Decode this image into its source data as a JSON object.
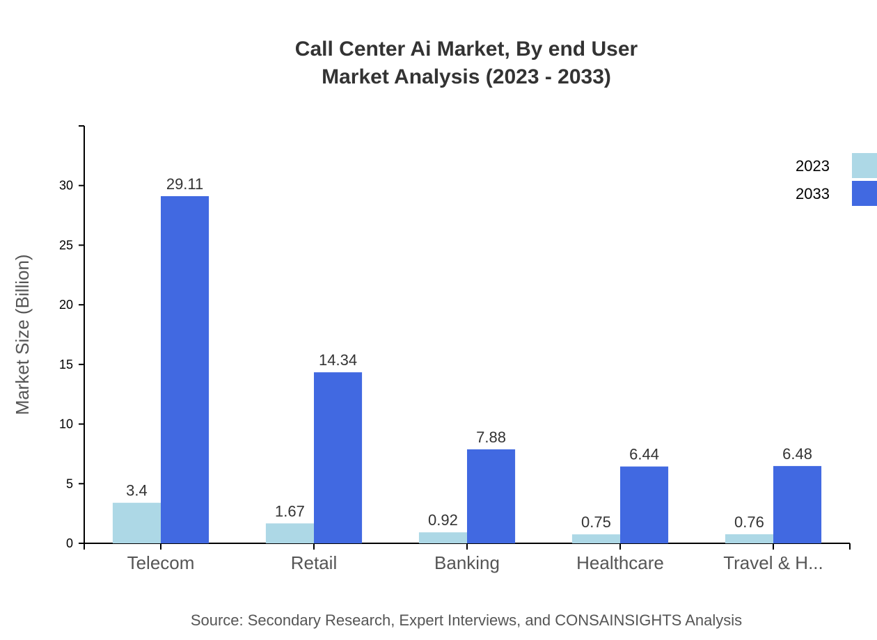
{
  "chart_data": {
    "type": "bar",
    "title": [
      "Call Center Ai Market, By end User",
      "Market Analysis (2023 - 2033)"
    ],
    "ylabel": "Market Size (Billion)",
    "xlabel": "",
    "ylim": [
      0,
      35
    ],
    "yticks": [
      0,
      5,
      10,
      15,
      20,
      25,
      30
    ],
    "categories": [
      "Telecom",
      "Retail",
      "Banking",
      "Healthcare",
      "Travel & H..."
    ],
    "series": [
      {
        "name": "2023",
        "color": "#ADD8E6",
        "values": [
          3.4,
          1.67,
          0.92,
          0.75,
          0.76
        ]
      },
      {
        "name": "2033",
        "color": "#4169E1",
        "values": [
          29.11,
          14.34,
          7.88,
          6.44,
          6.48
        ]
      }
    ],
    "legend": "top-right",
    "grid": false,
    "source": "Source: Secondary Research, Expert Interviews, and CONSAINSIGHTS Analysis"
  }
}
